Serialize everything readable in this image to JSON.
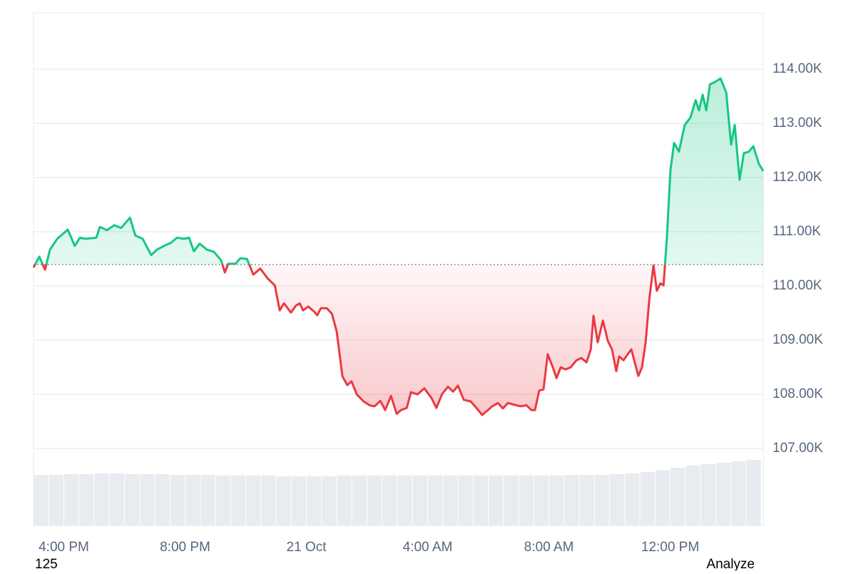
{
  "chart_data": {
    "type": "line",
    "xlim": [
      15,
      39.07
    ],
    "xticks": [
      {
        "value": 16,
        "label": "4:00 PM"
      },
      {
        "value": 20,
        "label": "8:00 PM"
      },
      {
        "value": 24,
        "label": "21 Oct"
      },
      {
        "value": 28,
        "label": "4:00 AM"
      },
      {
        "value": 32,
        "label": "8:00 AM"
      },
      {
        "value": 36,
        "label": "12:00 PM"
      }
    ],
    "ylim": [
      105580,
      115040
    ],
    "yticks": [
      {
        "value": 107000,
        "label": "107.00K"
      },
      {
        "value": 108000,
        "label": "108.00K"
      },
      {
        "value": 109000,
        "label": "109.00K"
      },
      {
        "value": 110000,
        "label": "110.00K"
      },
      {
        "value": 111000,
        "label": "111.00K"
      },
      {
        "value": 112000,
        "label": "112.00K"
      },
      {
        "value": 113000,
        "label": "113.00K"
      },
      {
        "value": 114000,
        "label": "114.00K"
      }
    ],
    "y2lim": [
      0,
      100
    ],
    "grid": true,
    "baseline": 110395,
    "up_color": "#16c784",
    "down_color": "#ea3943",
    "x": [
      15.0,
      15.19,
      15.38,
      15.54,
      15.78,
      16.13,
      16.36,
      16.53,
      16.72,
      17.07,
      17.19,
      17.42,
      17.66,
      17.89,
      18.18,
      18.36,
      18.6,
      18.88,
      19.07,
      19.31,
      19.54,
      19.73,
      19.96,
      20.13,
      20.29,
      20.48,
      20.72,
      20.95,
      21.19,
      21.31,
      21.42,
      21.66,
      21.82,
      22.04,
      22.25,
      22.48,
      22.72,
      22.96,
      23.12,
      23.26,
      23.49,
      23.66,
      23.78,
      23.89,
      24.06,
      24.25,
      24.36,
      24.48,
      24.67,
      24.84,
      25.0,
      25.19,
      25.35,
      25.49,
      25.66,
      25.89,
      26.08,
      26.25,
      26.44,
      26.6,
      26.79,
      26.98,
      27.12,
      27.31,
      27.45,
      27.66,
      27.89,
      28.13,
      28.29,
      28.48,
      28.67,
      28.84,
      29.0,
      29.19,
      29.42,
      29.61,
      29.8,
      29.99,
      30.13,
      30.32,
      30.48,
      30.65,
      30.84,
      31.07,
      31.26,
      31.42,
      31.54,
      31.68,
      31.82,
      31.96,
      32.13,
      32.25,
      32.39,
      32.55,
      32.72,
      32.91,
      33.07,
      33.24,
      33.38,
      33.47,
      33.61,
      33.78,
      33.94,
      34.08,
      34.22,
      34.32,
      34.46,
      34.6,
      34.72,
      34.84,
      34.95,
      35.07,
      35.19,
      35.31,
      35.45,
      35.56,
      35.68,
      35.78,
      35.89,
      36.01,
      36.13,
      36.29,
      36.48,
      36.67,
      36.84,
      36.95,
      37.07,
      37.19,
      37.31,
      37.47,
      37.66,
      37.85,
      38.01,
      38.13,
      38.29,
      38.43,
      38.6,
      38.74,
      38.93,
      39.07
    ],
    "series": [
      {
        "values": [
          110340,
          110540,
          110300,
          110670,
          110870,
          111040,
          110740,
          110890,
          110870,
          110890,
          111090,
          111030,
          111120,
          111070,
          111260,
          110930,
          110870,
          110570,
          110670,
          110740,
          110800,
          110890,
          110870,
          110890,
          110640,
          110780,
          110670,
          110630,
          110470,
          110250,
          110410,
          110410,
          110510,
          110500,
          110210,
          110320,
          110140,
          110010,
          109550,
          109680,
          109510,
          109640,
          109680,
          109550,
          109620,
          109530,
          109460,
          109590,
          109590,
          109490,
          109160,
          108330,
          108170,
          108240,
          108000,
          107870,
          107800,
          107780,
          107880,
          107710,
          107970,
          107640,
          107710,
          107750,
          108040,
          108000,
          108110,
          107930,
          107750,
          108010,
          108140,
          108050,
          108160,
          107900,
          107870,
          107750,
          107620,
          107710,
          107780,
          107840,
          107740,
          107840,
          107810,
          107780,
          107800,
          107710,
          107710,
          108070,
          108090,
          108740,
          108500,
          108300,
          108500,
          108460,
          108500,
          108630,
          108670,
          108590,
          108830,
          109450,
          108960,
          109360,
          108990,
          108830,
          108430,
          108700,
          108630,
          108740,
          108830,
          108570,
          108340,
          108500,
          108960,
          109750,
          110380,
          109910,
          110050,
          110010,
          110870,
          112140,
          112640,
          112480,
          112970,
          113110,
          113430,
          113240,
          113530,
          113240,
          113720,
          113760,
          113830,
          113570,
          112610,
          112970,
          111960,
          112450,
          112480,
          112580,
          112250,
          112120
        ]
      },
      {
        "axis": "y2",
        "color": "#e8ebef",
        "x": [
          15.25,
          15.75,
          16.25,
          16.75,
          17.25,
          17.75,
          18.25,
          18.75,
          19.25,
          19.75,
          20.25,
          20.75,
          21.25,
          21.75,
          22.25,
          22.75,
          23.25,
          23.75,
          24.25,
          24.75,
          25.25,
          25.75,
          26.25,
          26.75,
          27.25,
          27.75,
          28.25,
          28.75,
          29.25,
          29.75,
          30.25,
          30.75,
          31.25,
          31.75,
          32.25,
          32.75,
          33.25,
          33.75,
          34.25,
          34.75,
          35.25,
          35.75,
          36.25,
          36.75,
          37.25,
          37.75,
          38.25,
          38.75
        ],
        "values": [
          71,
          71,
          72,
          72,
          73,
          73,
          72,
          72,
          72,
          71,
          71,
          71,
          70,
          70,
          70,
          70,
          69,
          69,
          69,
          69,
          70,
          70,
          70,
          70,
          70,
          70,
          70,
          70,
          70,
          70,
          70,
          70,
          70,
          70,
          70,
          71,
          71,
          71,
          72,
          73,
          75,
          78,
          81,
          84,
          86,
          88,
          90,
          92
        ]
      }
    ]
  },
  "footer": {
    "left": "125",
    "right": "Analyze"
  }
}
